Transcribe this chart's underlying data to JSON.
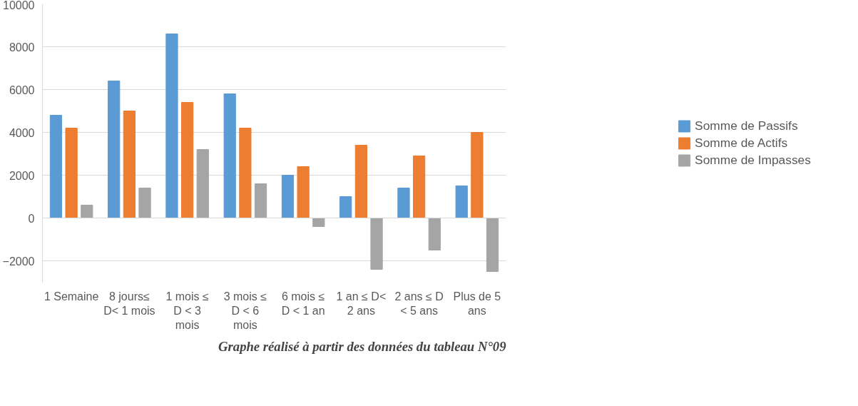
{
  "chart_data": {
    "type": "bar",
    "categories": [
      "1 Semaine",
      "8 jours≤ D< 1 mois",
      "1 mois ≤ D < 3 mois",
      "3 mois ≤ D < 6 mois",
      "6 mois ≤ D < 1 an",
      "1 an ≤ D< 2 ans",
      "2 ans ≤ D < 5 ans",
      "Plus de 5 ans"
    ],
    "series": [
      {
        "name": "Somme de Passifs",
        "color": "#5b9bd5",
        "values": [
          4800,
          6400,
          8600,
          5800,
          2000,
          1000,
          1400,
          1500
        ]
      },
      {
        "name": "Somme de Actifs",
        "color": "#ed7d31",
        "values": [
          4200,
          5000,
          5400,
          4200,
          2400,
          3400,
          2900,
          4000
        ]
      },
      {
        "name": "Somme de Impasses",
        "color": "#a5a5a5",
        "values": [
          600,
          1400,
          3200,
          1600,
          -400,
          -2400,
          -1500,
          -2500
        ]
      }
    ],
    "ylim": [
      -3000,
      10000
    ],
    "yticks": [
      -2000,
      0,
      2000,
      4000,
      6000,
      8000,
      10000
    ],
    "grid": "y",
    "legend": "right",
    "annotations": [
      "Graphe réalisé à partir des données du tableau N°09"
    ]
  }
}
